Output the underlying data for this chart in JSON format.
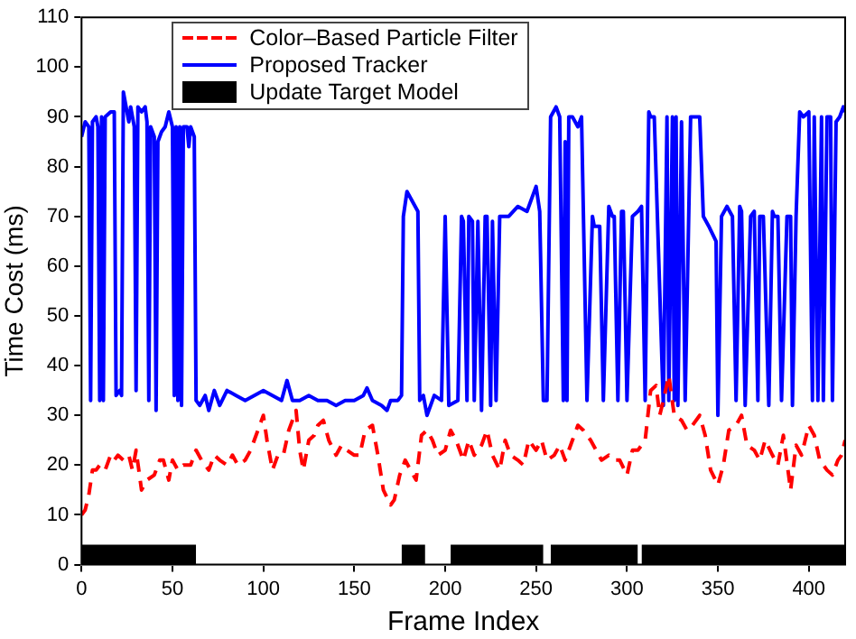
{
  "chart_data": {
    "type": "line",
    "xlabel": "Frame Index",
    "ylabel": "Time Cost (ms)",
    "xlim": [
      0,
      420
    ],
    "xticks": [
      0,
      50,
      100,
      150,
      200,
      250,
      300,
      350,
      400
    ],
    "ylim": [
      0,
      110
    ],
    "yticks": [
      0,
      10,
      20,
      30,
      40,
      50,
      60,
      70,
      80,
      90,
      100,
      110
    ],
    "grid": false,
    "legend": "top left",
    "marker": "none",
    "series": [
      {
        "name": "Color–Based Particle Filter",
        "color": "#ff0000",
        "line_style": "dashed",
        "x": [
          0,
          2,
          4,
          6,
          8,
          10,
          13,
          16,
          18,
          20,
          23,
          26,
          28,
          30,
          33,
          36,
          40,
          43,
          45,
          48,
          50,
          53,
          56,
          60,
          63,
          66,
          70,
          73,
          76,
          80,
          83,
          86,
          90,
          93,
          96,
          100,
          102,
          105,
          108,
          111,
          114,
          118,
          120,
          122,
          125,
          128,
          130,
          133,
          136,
          140,
          143,
          146,
          150,
          153,
          156,
          160,
          163,
          166,
          170,
          172,
          175,
          178,
          181,
          184,
          187,
          190,
          193,
          196,
          200,
          203,
          206,
          210,
          213,
          216,
          220,
          223,
          226,
          230,
          233,
          236,
          240,
          243,
          246,
          250,
          253,
          256,
          260,
          263,
          266,
          270,
          273,
          276,
          280,
          283,
          286,
          290,
          293,
          296,
          300,
          303,
          306,
          310,
          313,
          316,
          318,
          320,
          323,
          326,
          330,
          333,
          336,
          340,
          343,
          346,
          350,
          353,
          356,
          360,
          363,
          366,
          370,
          373,
          376,
          380,
          383,
          386,
          390,
          393,
          396,
          400,
          403,
          406,
          410,
          413,
          416,
          418,
          420
        ],
        "values": [
          10,
          11,
          14,
          19,
          19,
          20,
          19,
          22,
          21,
          22,
          21,
          22,
          19,
          23,
          15,
          17,
          18,
          21,
          21,
          17,
          21,
          19,
          20,
          20,
          23,
          21,
          19,
          22,
          21,
          20,
          22,
          20,
          21,
          23,
          26,
          30,
          25,
          19,
          22,
          22,
          27,
          31,
          23,
          19,
          25,
          26,
          28,
          29,
          25,
          22,
          24,
          23,
          22,
          22,
          27,
          28,
          22,
          15,
          12,
          13,
          18,
          21,
          19,
          17,
          26,
          27,
          25,
          22,
          23,
          27,
          25,
          21,
          25,
          22,
          24,
          27,
          22,
          19,
          25,
          22,
          21,
          20,
          25,
          23,
          25,
          21,
          22,
          24,
          21,
          25,
          28,
          27,
          25,
          23,
          21,
          22,
          21,
          21,
          18,
          23,
          23,
          25,
          35,
          36,
          30,
          33,
          38,
          30,
          29,
          27,
          28,
          30,
          26,
          19,
          16,
          20,
          27,
          28,
          30,
          24,
          23,
          21,
          25,
          22,
          20,
          26,
          15,
          24,
          22,
          28,
          26,
          21,
          19,
          18,
          21,
          22,
          25
        ]
      },
      {
        "name": "Proposed Tracker",
        "color": "#0000ff",
        "line_style": "solid",
        "x": [
          0,
          2,
          4,
          5,
          6,
          8,
          9,
          10,
          11,
          12,
          13,
          16,
          18,
          19,
          21,
          22,
          23,
          24,
          26,
          27,
          29,
          30,
          31,
          33,
          35,
          36,
          37,
          38,
          40,
          41,
          42,
          44,
          46,
          48,
          50,
          51,
          52,
          53,
          54,
          55,
          56,
          58,
          59,
          60,
          62,
          63,
          65,
          68,
          70,
          73,
          76,
          80,
          85,
          90,
          95,
          100,
          105,
          110,
          113,
          116,
          120,
          125,
          130,
          135,
          140,
          145,
          150,
          155,
          157,
          160,
          165,
          168,
          170,
          174,
          176,
          177,
          179,
          182,
          185,
          186,
          188,
          190,
          194,
          198,
          200,
          202,
          207,
          209,
          210,
          212,
          213,
          215,
          216,
          218,
          220,
          222,
          223,
          225,
          226,
          228,
          230,
          235,
          240,
          245,
          250,
          252,
          254,
          256,
          258,
          261,
          263,
          265,
          266,
          267,
          268,
          270,
          273,
          275,
          278,
          281,
          282,
          285,
          287,
          290,
          292,
          293,
          295,
          297,
          298,
          300,
          303,
          306,
          308,
          310,
          312,
          313,
          315,
          320,
          322,
          323,
          325,
          326,
          327,
          328,
          330,
          332,
          335,
          340,
          342,
          345,
          349,
          350,
          352,
          355,
          358,
          360,
          362,
          363,
          365,
          368,
          370,
          372,
          373,
          375,
          378,
          380,
          381,
          383,
          385,
          388,
          390,
          391,
          393,
          395,
          397,
          400,
          402,
          403,
          405,
          407,
          408,
          410,
          412,
          413,
          415,
          417,
          419,
          420
        ],
        "values": [
          86,
          89,
          88,
          33,
          89,
          90,
          88,
          33,
          90,
          33,
          90,
          91,
          91,
          34,
          35,
          34,
          95,
          93,
          89,
          92,
          88,
          35,
          92,
          91,
          92,
          89,
          33,
          88,
          86,
          31,
          85,
          87,
          88,
          91,
          88,
          34,
          88,
          33,
          88,
          32,
          88,
          88,
          84,
          88,
          86,
          33,
          32,
          34,
          31,
          35,
          32,
          35,
          34,
          33,
          34,
          35,
          34,
          33,
          37,
          33,
          33,
          34,
          33,
          33,
          32,
          33,
          33,
          34,
          35.5,
          33,
          32,
          31,
          33,
          33,
          34,
          70,
          75,
          73,
          71,
          33,
          34,
          30,
          34,
          33,
          70,
          32,
          33,
          70,
          69,
          33,
          70,
          69,
          33,
          69,
          31,
          70,
          70,
          32,
          69,
          33,
          70,
          70,
          72,
          71,
          76,
          71,
          33,
          33,
          90,
          92,
          90,
          33,
          85,
          33,
          90,
          90,
          88,
          90,
          33,
          70,
          68,
          68,
          33,
          72,
          70,
          70,
          33,
          71,
          71,
          33,
          70,
          71,
          72,
          33,
          91,
          90,
          90,
          32,
          90,
          33,
          90,
          33,
          90,
          32,
          89,
          33,
          90,
          90,
          70,
          68,
          65,
          30,
          70,
          72,
          70,
          33,
          72,
          71,
          32,
          70,
          71,
          33,
          70,
          70,
          32,
          71,
          70,
          70,
          33,
          70,
          70,
          32,
          70,
          91,
          90,
          91,
          33,
          90,
          33,
          90,
          33,
          90,
          90,
          33,
          89,
          90,
          92,
          91
        ]
      },
      {
        "name": "Update Target Model",
        "type": "area",
        "color": "#000000",
        "x": [
          0,
          63,
          63.5,
          176,
          189,
          189.5,
          203,
          254,
          254.5,
          258,
          306,
          306.5,
          308,
          420
        ],
        "values": [
          4,
          4,
          null,
          4,
          4,
          null,
          4,
          4,
          null,
          4,
          4,
          null,
          4,
          4
        ]
      }
    ]
  }
}
